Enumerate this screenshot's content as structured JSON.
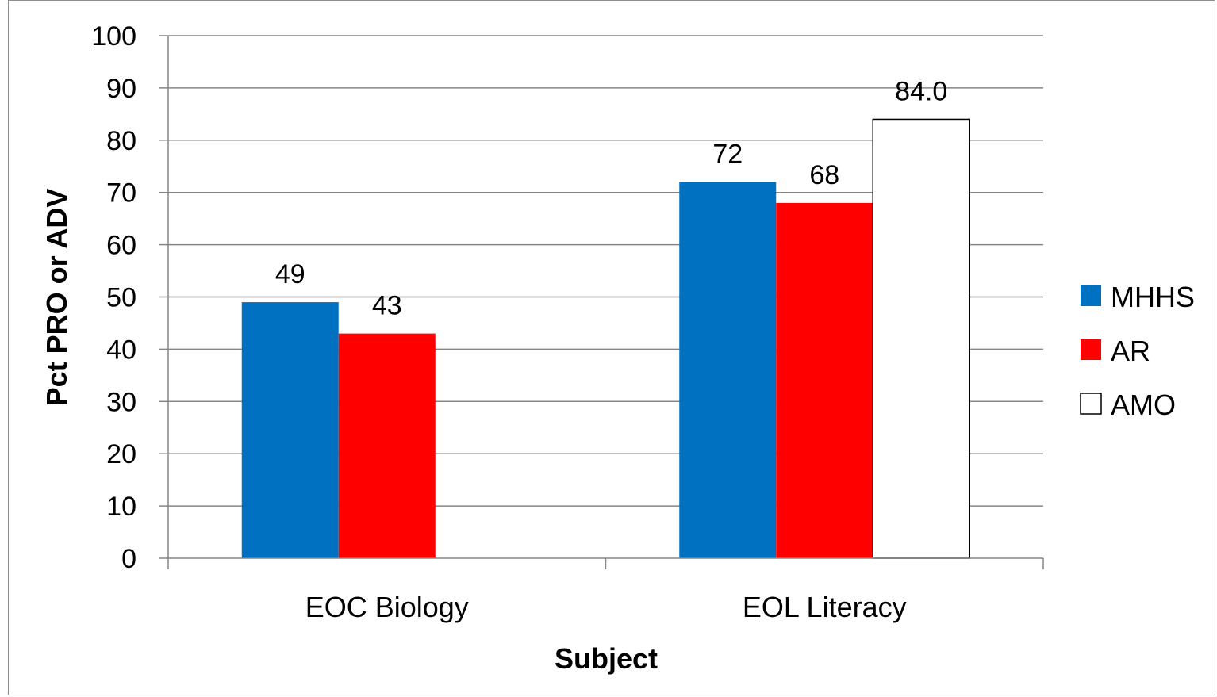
{
  "chart_data": {
    "type": "bar",
    "categories": [
      "EOC Biology",
      "EOL Literacy"
    ],
    "series": [
      {
        "name": "MHHS",
        "color": "#0070C0",
        "values": [
          49,
          72
        ],
        "labels": [
          "49",
          "72"
        ]
      },
      {
        "name": "AR",
        "color": "#FF0000",
        "values": [
          43,
          68
        ],
        "labels": [
          "43",
          "68"
        ]
      },
      {
        "name": "AMO",
        "color": "#FFFFFF",
        "values": [
          null,
          84.0
        ],
        "labels": [
          "",
          "84.0"
        ]
      }
    ],
    "xlabel": "Subject",
    "ylabel": "Pct PRO or ADV",
    "ylim": [
      0,
      100
    ],
    "yticks": [
      "0",
      "10",
      "20",
      "30",
      "40",
      "50",
      "60",
      "70",
      "80",
      "90",
      "100"
    ],
    "grid": true,
    "legend_position": "right"
  }
}
